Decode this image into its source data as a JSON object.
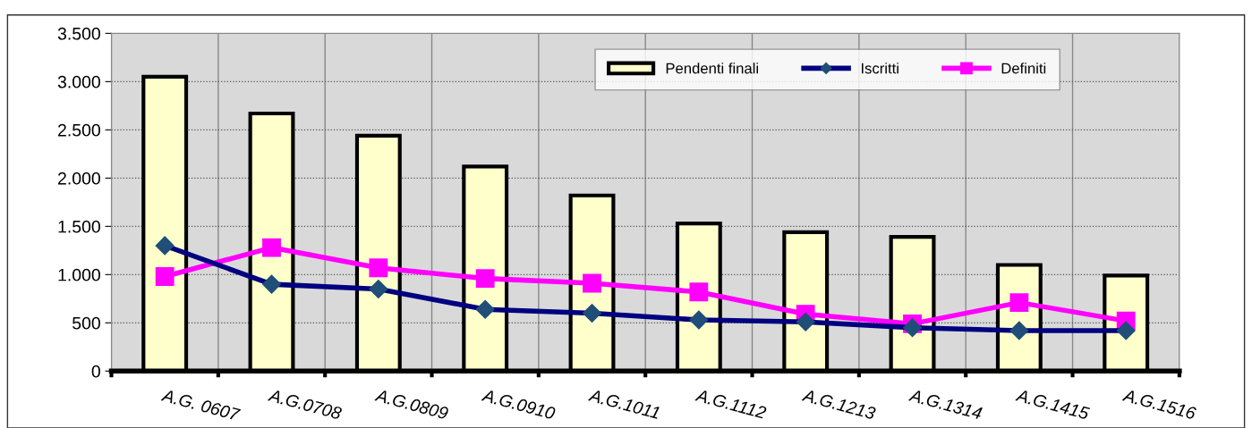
{
  "chart_data": {
    "type": "bar",
    "categories": [
      "A.G. 0607",
      "A.G.0708",
      "A.G.0809",
      "A.G.0910",
      "A.G.1011",
      "A.G.1112",
      "A.G.1213",
      "A.G.1314",
      "A.G.1415",
      "A.G.1516"
    ],
    "series": [
      {
        "name": "Pendenti finali",
        "color": "#ffffcc",
        "values": [
          3050,
          2670,
          2440,
          2120,
          1820,
          1530,
          1440,
          1390,
          1100,
          990
        ]
      },
      {
        "name": "Iscritti",
        "type": "line",
        "color": "#000080",
        "marker": "diamond",
        "values": [
          1300,
          900,
          850,
          640,
          600,
          530,
          510,
          450,
          420,
          420
        ]
      },
      {
        "name": "Definiti",
        "type": "line",
        "color": "#ff00ff",
        "marker": "square",
        "values": [
          980,
          1280,
          1070,
          960,
          910,
          820,
          590,
          490,
          710,
          520
        ]
      }
    ],
    "ylim": [
      0,
      3500
    ],
    "yticks": [
      0,
      500,
      {
        "value": 1000,
        "label": "1.000"
      },
      {
        "value": 1500,
        "label": "1.500"
      },
      {
        "value": 2000,
        "label": "2.000"
      },
      {
        "value": 2500,
        "label": "2.500"
      },
      {
        "value": 3000,
        "label": "3.000"
      },
      {
        "value": 3500,
        "label": "3.500"
      }
    ],
    "grid": true,
    "legend": "top right",
    "line_style": "solid"
  }
}
